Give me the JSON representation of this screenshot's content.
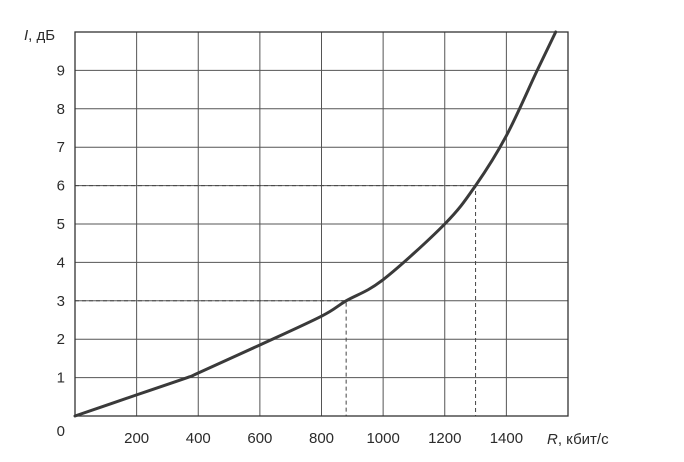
{
  "chart_data": {
    "type": "line",
    "xlabel_var": "R",
    "xlabel_unit": ", кбит/с",
    "ylabel_var": "I",
    "ylabel_unit": ", дБ",
    "origin_label": "0",
    "xlim": [
      0,
      1600
    ],
    "ylim": [
      0,
      10
    ],
    "x_ticks": [
      200,
      400,
      600,
      800,
      1000,
      1200,
      1400
    ],
    "y_ticks": [
      1,
      2,
      3,
      4,
      5,
      6,
      7,
      8,
      9
    ],
    "grid": true,
    "series": [
      {
        "x": [
          0,
          200,
          365,
          400,
          600,
          800,
          880,
          1000,
          1200,
          1300,
          1400,
          1500,
          1560
        ],
        "y": [
          0,
          0.55,
          1.0,
          1.12,
          1.85,
          2.6,
          3.0,
          3.55,
          5.0,
          6.0,
          7.3,
          9.0,
          10.0
        ]
      }
    ],
    "guides": [
      {
        "x": 880,
        "y": 3
      },
      {
        "x": 1300,
        "y": 6
      }
    ]
  }
}
